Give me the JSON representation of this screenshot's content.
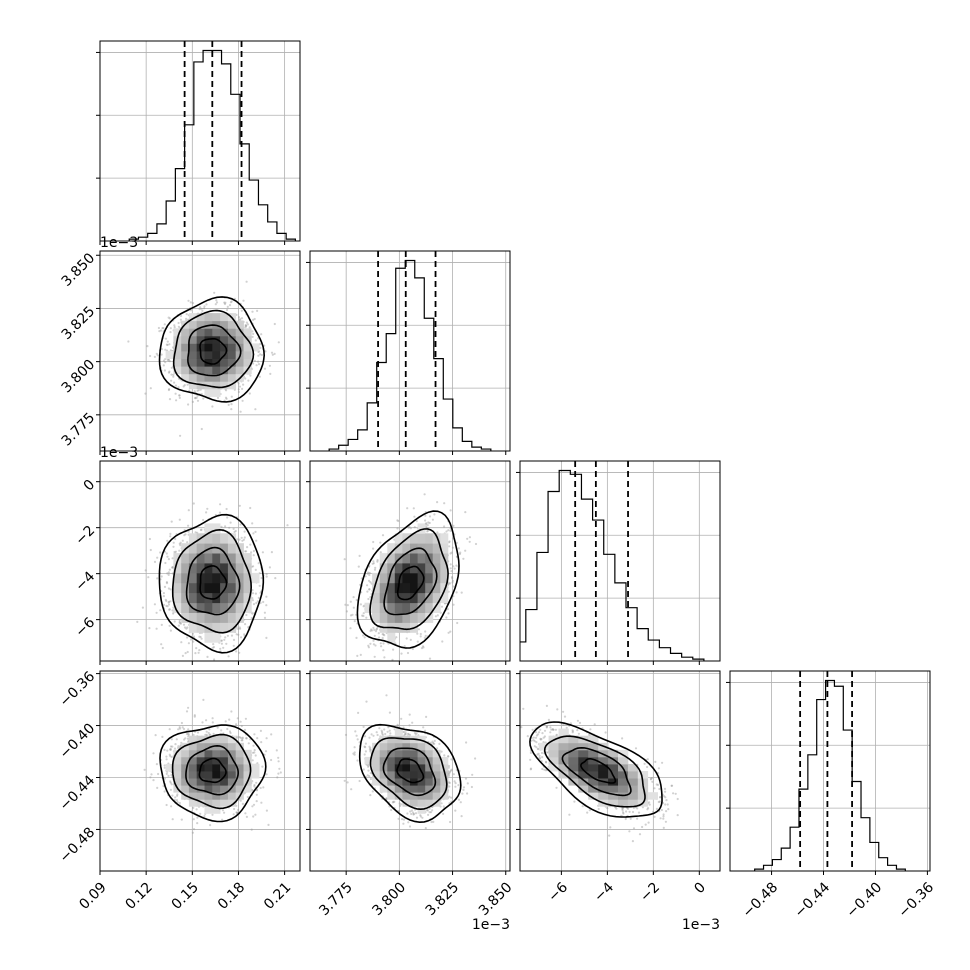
{
  "chart_data": {
    "type": "corner",
    "title": "",
    "grid": true,
    "colors": {
      "hist": "#000000",
      "points": "#9a9a9a",
      "contour": "#000000",
      "grid": "#b0b0b0",
      "quantile": "#000000"
    },
    "params": [
      {
        "index": 0,
        "range": [
          0.09,
          0.22
        ],
        "ticks": [
          0.09,
          0.12,
          0.15,
          0.18,
          0.21
        ],
        "tick_labels": [
          "0.09",
          "0.12",
          "0.15",
          "0.18",
          "0.21"
        ],
        "offset_label": "",
        "mean": 0.163,
        "sd": 0.0135,
        "quantiles": [
          0.145,
          0.163,
          0.182
        ],
        "hist_counts": [
          1,
          2,
          4,
          9,
          21,
          38,
          61,
          94,
          100,
          100,
          93,
          77,
          51,
          32,
          19,
          10,
          4,
          1
        ]
      },
      {
        "index": 1,
        "range": [
          3.758,
          3.852
        ],
        "ticks": [
          3.775,
          3.8,
          3.825,
          3.85
        ],
        "tick_labels": [
          "3.775",
          "3.800",
          "3.825",
          "3.850"
        ],
        "offset_label": "1e−3",
        "mean": 3.805,
        "sd": 0.0095,
        "quantiles": [
          3.79,
          3.803,
          3.817
        ],
        "hist_counts": [
          1,
          3,
          6,
          11,
          25,
          46,
          61,
          95,
          99,
          90,
          69,
          48,
          27,
          12,
          5,
          2,
          1
        ]
      },
      {
        "index": 2,
        "range": [
          -7.8,
          0.9
        ],
        "ticks": [
          -6,
          -4,
          -2,
          0
        ],
        "tick_labels": [
          "−6",
          "−4",
          "−2",
          "0"
        ],
        "offset_label": "1e−3",
        "mean": -4.4,
        "sd": 1.15,
        "quantiles": [
          -5.4,
          -4.5,
          -3.1
        ],
        "hist_counts": [
          1,
          3,
          10,
          27,
          57,
          89,
          100,
          98,
          85,
          74,
          56,
          41,
          28,
          17,
          11,
          7,
          4,
          2,
          1
        ]
      },
      {
        "index": 3,
        "range": [
          -0.512,
          -0.358
        ],
        "ticks": [
          -0.48,
          -0.44,
          -0.4,
          -0.36
        ],
        "tick_labels": [
          "−0.48",
          "−0.44",
          "−0.40",
          "−0.36"
        ],
        "offset_label": "",
        "mean": -0.435,
        "sd": 0.0145,
        "quantiles": [
          -0.458,
          -0.437,
          -0.418
        ],
        "hist_counts": [
          1,
          3,
          6,
          12,
          23,
          43,
          61,
          90,
          100,
          97,
          74,
          47,
          28,
          15,
          7,
          3,
          1
        ]
      }
    ],
    "y_tick_sets": {
      "1": {
        "ticks": [
          3.775,
          3.8,
          3.825,
          3.85
        ],
        "labels": [
          "3.775",
          "3.800",
          "3.825",
          "3.850"
        ]
      },
      "2": {
        "ticks": [
          -6,
          -4,
          -2,
          0
        ],
        "labels": [
          "−6",
          "−4",
          "−2",
          "0"
        ]
      },
      "3": {
        "ticks": [
          -0.48,
          -0.44,
          -0.4,
          -0.36
        ],
        "labels": [
          "−0.48",
          "−0.44",
          "−0.40",
          "−0.36"
        ]
      }
    },
    "pairs": [
      {
        "row": 1,
        "col": 0,
        "rho": 0.0,
        "dark_levels": [
          0.25,
          0.5,
          1.0
        ]
      },
      {
        "row": 2,
        "col": 0,
        "rho": 0.0,
        "dark_levels": [
          0.25,
          0.5,
          1.0
        ]
      },
      {
        "row": 2,
        "col": 1,
        "rho": 0.35,
        "dark_levels": [
          0.25,
          0.5,
          1.0
        ]
      },
      {
        "row": 3,
        "col": 0,
        "rho": 0.0,
        "dark_levels": [
          0.25,
          0.5,
          1.0
        ]
      },
      {
        "row": 3,
        "col": 1,
        "rho": -0.3,
        "dark_levels": [
          0.25,
          0.5,
          1.0
        ]
      },
      {
        "row": 3,
        "col": 2,
        "rho": -0.6,
        "dark_levels": [
          0.25,
          0.5,
          1.0
        ]
      }
    ],
    "contour_levels_sigma": [
      0.5,
      1.0,
      1.5,
      2.0
    ]
  }
}
